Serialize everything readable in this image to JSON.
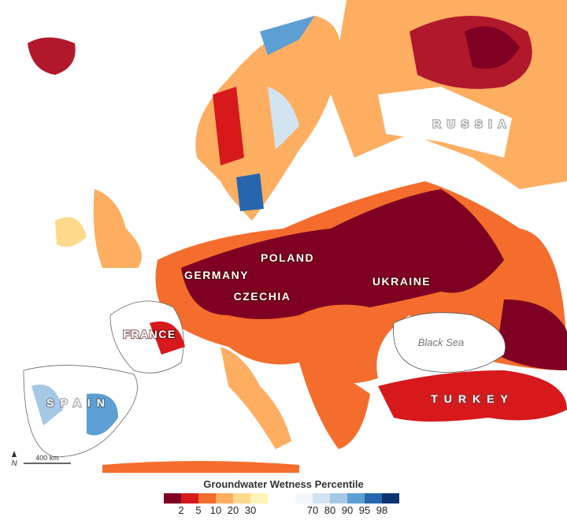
{
  "map": {
    "labels": [
      {
        "text": "POLAND",
        "kind": "country"
      },
      {
        "text": "GERMANY",
        "kind": "country"
      },
      {
        "text": "CZECHIA",
        "kind": "country"
      },
      {
        "text": "UKRAINE",
        "kind": "country"
      },
      {
        "text": "FRANCE",
        "kind": "country"
      },
      {
        "text": "SPAIN",
        "kind": "country"
      },
      {
        "text": "TURKEY",
        "kind": "country"
      },
      {
        "text": "RUSSIA",
        "kind": "country"
      },
      {
        "text": "Black Sea",
        "kind": "sea"
      }
    ],
    "scale_bar": "400 km",
    "north": "N",
    "legend": {
      "title": "Groundwater Wetness Percentile",
      "dry_ticks": [
        2,
        5,
        10,
        20,
        30
      ],
      "dry_colors": [
        "#7f0022",
        "#d7191c",
        "#f46d2c",
        "#fdae61",
        "#fed98b",
        "#fff3b8"
      ],
      "wet_ticks": [
        70,
        80,
        90,
        95,
        98
      ],
      "wet_colors": [
        "#f3f8fc",
        "#d2e3f2",
        "#a6c8e6",
        "#5d9fd3",
        "#2766ae",
        "#0b3370"
      ]
    }
  }
}
